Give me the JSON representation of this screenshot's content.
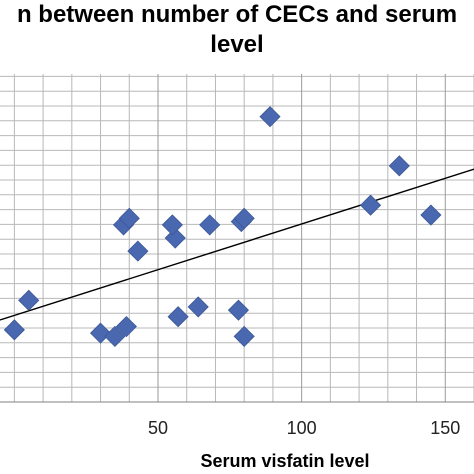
{
  "chart_data": {
    "type": "scatter",
    "title_lines": [
      "n between number of CECs and serum",
      "level"
    ],
    "xlabel": "Serum visfatin level",
    "ylabel": "",
    "xticks": [
      50,
      100,
      150
    ],
    "xlim": [
      -5,
      160
    ],
    "ylim": [
      0,
      1
    ],
    "grid": true,
    "colors": {
      "marker": "#4a68b0",
      "trendline": "#000000",
      "grid": "#b8b8b8"
    },
    "series": [
      {
        "x": [
          0,
          5,
          30,
          35,
          38,
          40,
          39,
          43,
          56,
          55,
          57,
          64,
          68,
          78,
          79,
          80,
          80,
          89,
          124,
          134,
          145
        ],
        "y": [
          0.22,
          0.31,
          0.21,
          0.2,
          0.54,
          0.56,
          0.23,
          0.46,
          0.5,
          0.54,
          0.26,
          0.29,
          0.54,
          0.28,
          0.55,
          0.2,
          0.56,
          0.87,
          0.6,
          0.72,
          0.57
        ]
      }
    ],
    "trendline": {
      "x": [
        -5,
        160
      ],
      "y": [
        0.25,
        0.71
      ]
    }
  }
}
